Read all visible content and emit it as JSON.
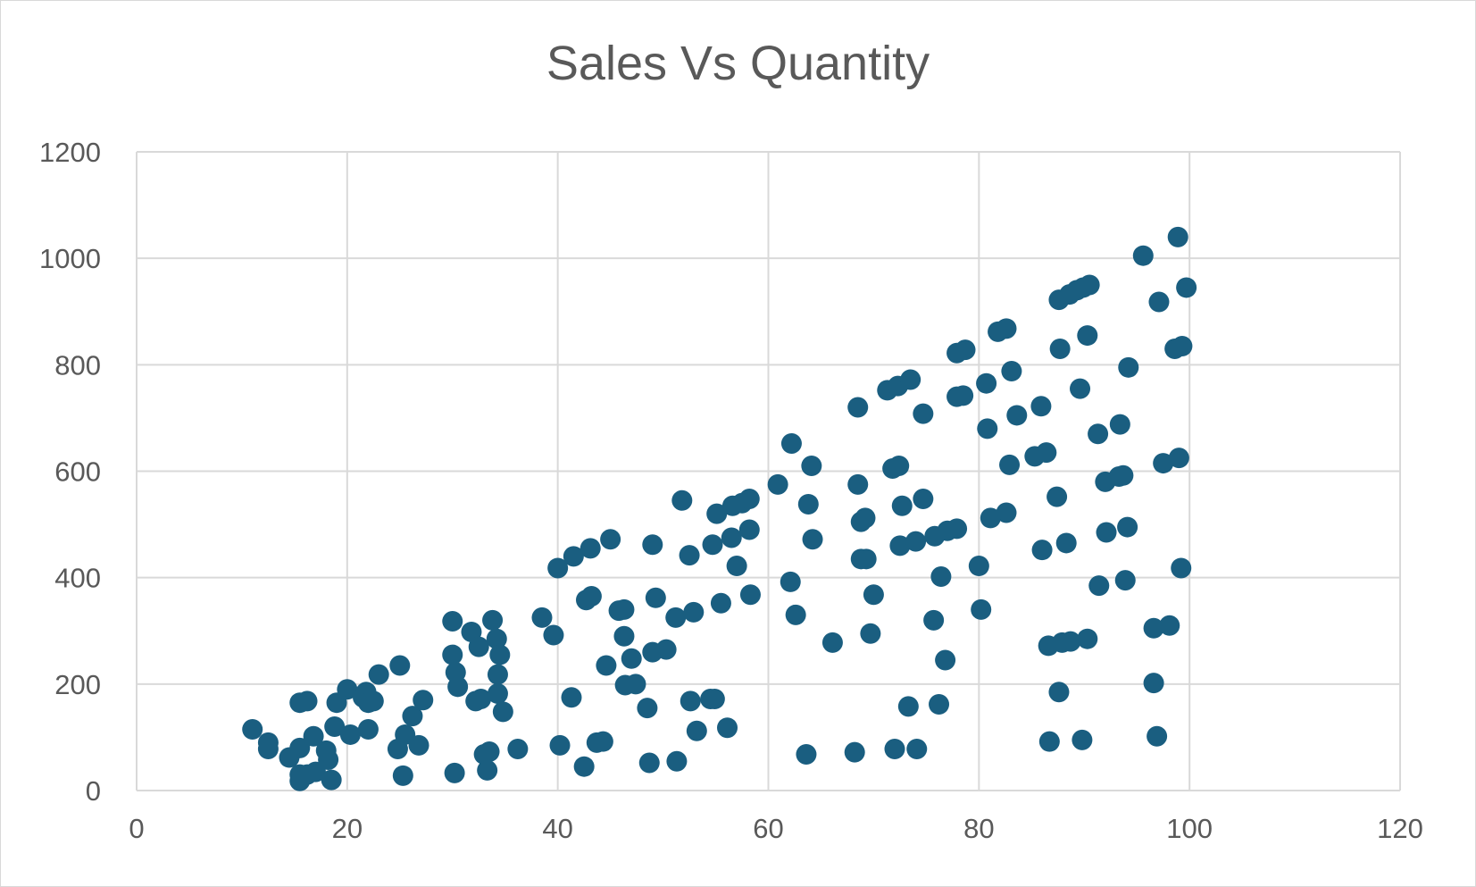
{
  "chart_data": {
    "type": "scatter",
    "title": "Sales Vs Quantity",
    "xlabel": "",
    "ylabel": "",
    "xlim": [
      0,
      120
    ],
    "ylim": [
      0,
      1200
    ],
    "x_ticks": [
      "0",
      "20",
      "40",
      "60",
      "80",
      "100",
      "120"
    ],
    "y_ticks": [
      "0",
      "200",
      "400",
      "600",
      "800",
      "1000",
      "1200"
    ],
    "grid": true,
    "legend": "none",
    "marker_color": "#1a5e80",
    "points": [
      [
        11,
        115
      ],
      [
        12.5,
        90
      ],
      [
        12.5,
        78
      ],
      [
        14.5,
        62
      ],
      [
        15.5,
        80
      ],
      [
        15.5,
        30
      ],
      [
        15.5,
        18
      ],
      [
        16.2,
        30
      ],
      [
        15.5,
        165
      ],
      [
        16.2,
        168
      ],
      [
        16.8,
        102
      ],
      [
        17,
        35
      ],
      [
        18,
        75
      ],
      [
        18.2,
        58
      ],
      [
        18.5,
        20
      ],
      [
        18.8,
        120
      ],
      [
        19,
        165
      ],
      [
        20,
        190
      ],
      [
        20.3,
        105
      ],
      [
        21.5,
        175
      ],
      [
        21.8,
        185
      ],
      [
        22,
        115
      ],
      [
        22,
        165
      ],
      [
        22.5,
        168
      ],
      [
        23,
        218
      ],
      [
        24.8,
        78
      ],
      [
        25,
        235
      ],
      [
        25.3,
        28
      ],
      [
        25.5,
        105
      ],
      [
        26.2,
        140
      ],
      [
        26.8,
        85
      ],
      [
        27.2,
        170
      ],
      [
        30,
        318
      ],
      [
        30,
        255
      ],
      [
        30.2,
        33
      ],
      [
        30.3,
        222
      ],
      [
        30.5,
        195
      ],
      [
        31.8,
        298
      ],
      [
        32.2,
        168
      ],
      [
        32.5,
        270
      ],
      [
        32.7,
        172
      ],
      [
        33,
        68
      ],
      [
        33.3,
        38
      ],
      [
        33.5,
        73
      ],
      [
        33.8,
        320
      ],
      [
        34.2,
        285
      ],
      [
        34.3,
        218
      ],
      [
        34.3,
        182
      ],
      [
        34.5,
        255
      ],
      [
        34.8,
        148
      ],
      [
        36.2,
        78
      ],
      [
        38.5,
        325
      ],
      [
        39.6,
        292
      ],
      [
        40,
        418
      ],
      [
        40.2,
        85
      ],
      [
        41.3,
        175
      ],
      [
        41.5,
        440
      ],
      [
        42.5,
        45
      ],
      [
        42.7,
        358
      ],
      [
        43.1,
        455
      ],
      [
        43.2,
        365
      ],
      [
        43.7,
        90
      ],
      [
        44.3,
        92
      ],
      [
        44.6,
        235
      ],
      [
        45,
        472
      ],
      [
        45.8,
        338
      ],
      [
        46.3,
        340
      ],
      [
        46.3,
        290
      ],
      [
        46.4,
        198
      ],
      [
        47,
        248
      ],
      [
        47.4,
        200
      ],
      [
        48.5,
        155
      ],
      [
        48.7,
        52
      ],
      [
        49,
        462
      ],
      [
        49,
        260
      ],
      [
        49.3,
        362
      ],
      [
        50.3,
        265
      ],
      [
        51.2,
        325
      ],
      [
        51.3,
        55
      ],
      [
        51.8,
        545
      ],
      [
        52.5,
        442
      ],
      [
        52.6,
        168
      ],
      [
        52.9,
        335
      ],
      [
        53.2,
        112
      ],
      [
        54.5,
        172
      ],
      [
        54.7,
        462
      ],
      [
        54.9,
        172
      ],
      [
        55.1,
        520
      ],
      [
        55.5,
        352
      ],
      [
        56.1,
        118
      ],
      [
        56.5,
        475
      ],
      [
        56.6,
        535
      ],
      [
        57,
        422
      ],
      [
        57.5,
        540
      ],
      [
        58.2,
        548
      ],
      [
        58.2,
        490
      ],
      [
        58.3,
        368
      ],
      [
        60.9,
        575
      ],
      [
        62.1,
        392
      ],
      [
        62.2,
        652
      ],
      [
        62.6,
        330
      ],
      [
        63.6,
        68
      ],
      [
        63.8,
        538
      ],
      [
        64.1,
        610
      ],
      [
        64.2,
        472
      ],
      [
        66.1,
        278
      ],
      [
        68.2,
        72
      ],
      [
        68.5,
        720
      ],
      [
        68.5,
        575
      ],
      [
        68.8,
        505
      ],
      [
        68.8,
        435
      ],
      [
        69.2,
        512
      ],
      [
        69.3,
        435
      ],
      [
        69.7,
        295
      ],
      [
        70,
        368
      ],
      [
        71.3,
        752
      ],
      [
        71.8,
        605
      ],
      [
        72,
        78
      ],
      [
        72.3,
        760
      ],
      [
        72.4,
        610
      ],
      [
        72.5,
        460
      ],
      [
        72.7,
        535
      ],
      [
        73.3,
        158
      ],
      [
        73.5,
        772
      ],
      [
        74,
        468
      ],
      [
        74.1,
        78
      ],
      [
        74.7,
        708
      ],
      [
        74.7,
        548
      ],
      [
        75.7,
        320
      ],
      [
        75.8,
        478
      ],
      [
        76.2,
        162
      ],
      [
        76.4,
        402
      ],
      [
        76.8,
        245
      ],
      [
        77,
        488
      ],
      [
        77.9,
        740
      ],
      [
        77.9,
        822
      ],
      [
        77.9,
        492
      ],
      [
        78.5,
        742
      ],
      [
        78.7,
        828
      ],
      [
        80,
        422
      ],
      [
        80.2,
        340
      ],
      [
        80.7,
        765
      ],
      [
        80.8,
        680
      ],
      [
        81.1,
        512
      ],
      [
        81.8,
        862
      ],
      [
        82.6,
        868
      ],
      [
        82.6,
        522
      ],
      [
        82.9,
        612
      ],
      [
        83.1,
        788
      ],
      [
        83.6,
        705
      ],
      [
        85.3,
        628
      ],
      [
        85.9,
        722
      ],
      [
        86,
        452
      ],
      [
        86.4,
        635
      ],
      [
        86.6,
        272
      ],
      [
        86.7,
        92
      ],
      [
        87.4,
        552
      ],
      [
        87.6,
        922
      ],
      [
        87.6,
        185
      ],
      [
        87.7,
        830
      ],
      [
        87.9,
        278
      ],
      [
        88.3,
        465
      ],
      [
        88.6,
        932
      ],
      [
        88.7,
        280
      ],
      [
        89.3,
        940
      ],
      [
        89.6,
        755
      ],
      [
        89.8,
        95
      ],
      [
        89.9,
        945
      ],
      [
        90.3,
        855
      ],
      [
        90.3,
        285
      ],
      [
        90.5,
        950
      ],
      [
        91.3,
        670
      ],
      [
        91.4,
        385
      ],
      [
        92,
        580
      ],
      [
        92.1,
        485
      ],
      [
        93.3,
        590
      ],
      [
        93.4,
        688
      ],
      [
        93.7,
        592
      ],
      [
        93.9,
        395
      ],
      [
        94.1,
        495
      ],
      [
        94.2,
        795
      ],
      [
        95.6,
        1005
      ],
      [
        96.6,
        305
      ],
      [
        96.6,
        202
      ],
      [
        96.9,
        102
      ],
      [
        97.1,
        918
      ],
      [
        97.5,
        615
      ],
      [
        98.1,
        310
      ],
      [
        98.6,
        830
      ],
      [
        98.9,
        1040
      ],
      [
        99,
        625
      ],
      [
        99.2,
        418
      ],
      [
        99.3,
        835
      ],
      [
        99.7,
        945
      ]
    ]
  }
}
